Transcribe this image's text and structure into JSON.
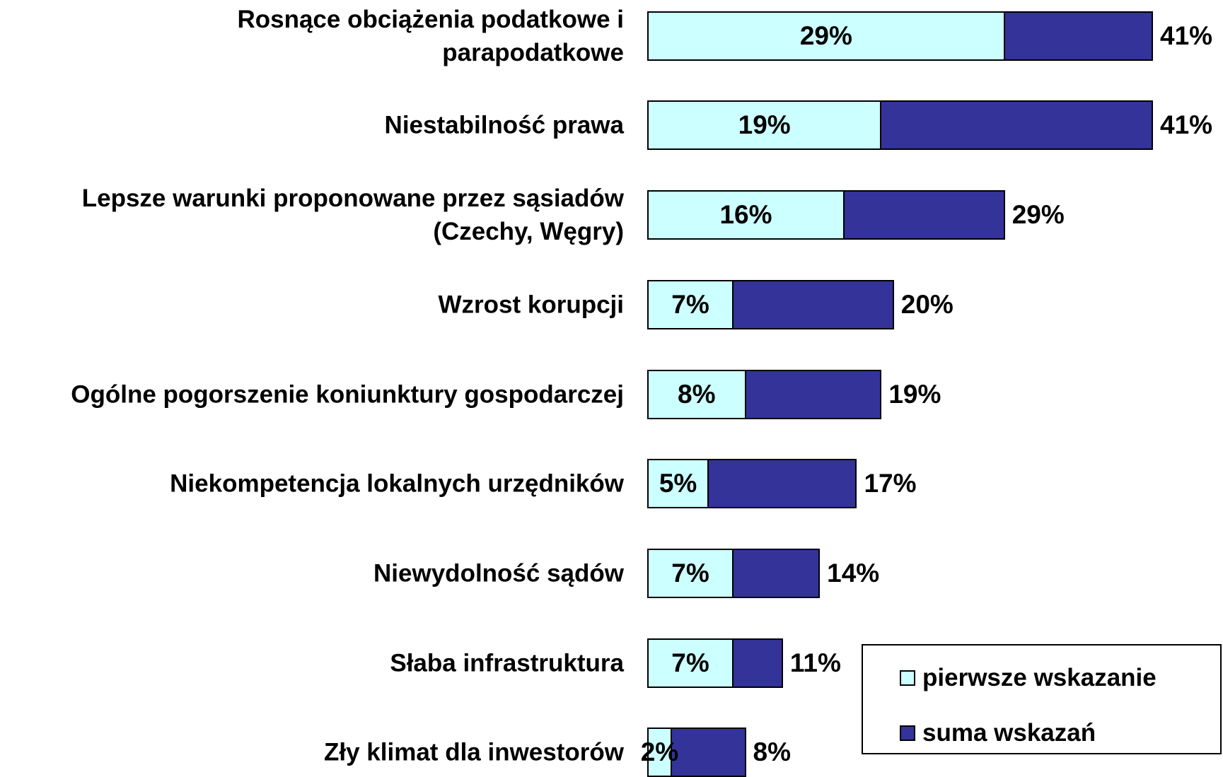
{
  "chart_data": {
    "type": "overlay-bar",
    "categories": [
      "Rosnące obciążenia podatkowe i\nparapodatkowe",
      "Niestabilność prawa",
      "Lepsze warunki proponowane przez sąsiadów\n(Czechy, Węgry)",
      "Wzrost korupcji",
      "Ogólne pogorszenie koniunktury gospodarczej",
      "Niekompetencja lokalnych urzędników",
      "Niewydolność sądów",
      "Słaba infrastruktura",
      "Zły klimat dla inwestorów"
    ],
    "series": [
      {
        "name": "pierwsze wskazanie",
        "color": "#ccffff",
        "values": [
          29,
          19,
          16,
          7,
          8,
          5,
          7,
          7,
          2
        ],
        "value_labels": [
          "29%",
          "19%",
          "16%",
          "7%",
          "8%",
          "5%",
          "7%",
          "7%",
          "2%"
        ]
      },
      {
        "name": "suma wskazań",
        "color": "#333399",
        "values": [
          41,
          41,
          29,
          20,
          19,
          17,
          14,
          11,
          8
        ],
        "value_labels": [
          "41%",
          "41%",
          "29%",
          "20%",
          "19%",
          "17%",
          "14%",
          "11%",
          "8%"
        ]
      }
    ]
  }
}
